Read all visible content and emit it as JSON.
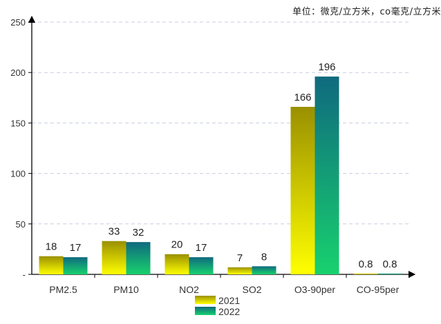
{
  "chart_data": {
    "type": "bar",
    "unit_note": "单位：微克/立方米，co毫克/立方米",
    "categories": [
      "PM2.5",
      "PM10",
      "NO2",
      "SO2",
      "O3-90per",
      "CO-95per"
    ],
    "series": [
      {
        "name": "2021",
        "values": [
          18,
          33,
          20,
          7,
          166,
          0.8
        ],
        "labels": [
          "18",
          "33",
          "20",
          "7",
          "166",
          "0.8"
        ]
      },
      {
        "name": "2022",
        "values": [
          17,
          32,
          17,
          8,
          196,
          0.8
        ],
        "labels": [
          "17",
          "32",
          "17",
          "8",
          "196",
          "0.8"
        ]
      }
    ],
    "yticks": [
      0,
      50,
      100,
      150,
      200,
      250
    ],
    "ytick_labels": [
      "-",
      "50",
      "100",
      "150",
      "200",
      "250"
    ],
    "ylim": [
      0,
      250
    ],
    "grid": true,
    "legend_position": "bottom",
    "colors": {
      "series_2021_top": "#9a9000",
      "series_2021_bottom": "#ffff00",
      "series_2022_top": "#0f6a7e",
      "series_2022_bottom": "#18d16e",
      "grid": "#c8cbe0",
      "axis": "#000000"
    }
  }
}
